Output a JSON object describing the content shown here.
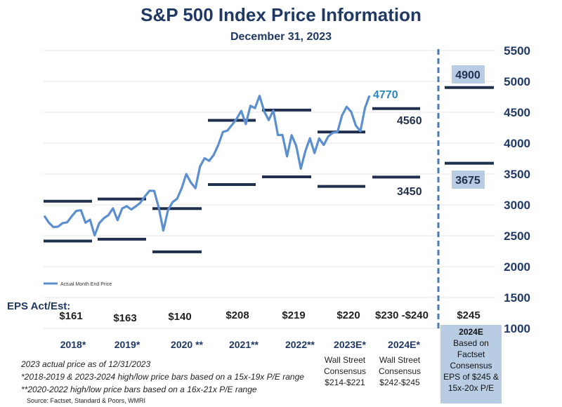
{
  "header": {
    "title": "S&P 500 Index Price Information",
    "subtitle": "December 31, 2023"
  },
  "legend": {
    "label": "Actual Month End Price"
  },
  "eps_header": "EPS Act/Est:",
  "eps": [
    "$161",
    "$163",
    "$140",
    "$208",
    "$219",
    "$220",
    "$230 -$240",
    "$245"
  ],
  "years": [
    "2018*",
    "2019*",
    "2020 **",
    "2021**",
    "2022**",
    "2023E*",
    "2024E*"
  ],
  "consensus_2023": [
    "Wall Street",
    "Consensus",
    "$214-$221"
  ],
  "consensus_2024": [
    "Wall Street",
    "Consensus",
    "$242-$245"
  ],
  "box_2024": {
    "title": "2024E",
    "lines": [
      "Based on",
      "Factset",
      "Consensus",
      "EPS of $245 &",
      "15x-20x P/E"
    ]
  },
  "notes": [
    "2023 actual price as of 12/31/2023",
    "*2018-2019 & 2023-2024  high/low price bars based on a 15x-19x P/E range",
    "**2020-2022 high/low price bars based on a 16x-21x P/E range"
  ],
  "source": "Source: Factset, Standard & Poors, WMRI",
  "colors": {
    "line": "#5b8fcf",
    "bars": "#1f2f4d",
    "navy": "#1f3864",
    "label_box": "#b8cce4",
    "highlight_label": "#2e86c1"
  },
  "chart_data": {
    "type": "line",
    "ylim": [
      1000,
      5500
    ],
    "yticks": [
      1000,
      1500,
      2000,
      2500,
      3000,
      3500,
      4000,
      4500,
      5000,
      5500
    ],
    "series": [
      {
        "name": "Actual Month End Price",
        "x": [
          "2018-01",
          "2018-02",
          "2018-03",
          "2018-04",
          "2018-05",
          "2018-06",
          "2018-07",
          "2018-08",
          "2018-09",
          "2018-10",
          "2018-11",
          "2018-12",
          "2019-01",
          "2019-02",
          "2019-03",
          "2019-04",
          "2019-05",
          "2019-06",
          "2019-07",
          "2019-08",
          "2019-09",
          "2019-10",
          "2019-11",
          "2019-12",
          "2020-01",
          "2020-02",
          "2020-03",
          "2020-04",
          "2020-05",
          "2020-06",
          "2020-07",
          "2020-08",
          "2020-09",
          "2020-10",
          "2020-11",
          "2020-12",
          "2021-01",
          "2021-02",
          "2021-03",
          "2021-04",
          "2021-05",
          "2021-06",
          "2021-07",
          "2021-08",
          "2021-09",
          "2021-10",
          "2021-11",
          "2021-12",
          "2022-01",
          "2022-02",
          "2022-03",
          "2022-04",
          "2022-05",
          "2022-06",
          "2022-07",
          "2022-08",
          "2022-09",
          "2022-10",
          "2022-11",
          "2022-12",
          "2023-01",
          "2023-02",
          "2023-03",
          "2023-04",
          "2023-05",
          "2023-06",
          "2023-07",
          "2023-08",
          "2023-09",
          "2023-10",
          "2023-11",
          "2023-12"
        ],
        "values": [
          2824,
          2714,
          2641,
          2648,
          2705,
          2718,
          2816,
          2902,
          2914,
          2712,
          2760,
          2507,
          2704,
          2784,
          2834,
          2946,
          2752,
          2942,
          2980,
          2926,
          2977,
          3038,
          3141,
          3231,
          3226,
          2954,
          2585,
          2912,
          3044,
          3100,
          3271,
          3500,
          3363,
          3270,
          3622,
          3756,
          3714,
          3811,
          3973,
          4181,
          4204,
          4298,
          4395,
          4523,
          4308,
          4605,
          4567,
          4766,
          4516,
          4374,
          4530,
          4132,
          4132,
          3785,
          4130,
          3955,
          3586,
          3872,
          4080,
          3840,
          4077,
          3970,
          4109,
          4169,
          4180,
          4450,
          4589,
          4508,
          4288,
          4194,
          4568,
          4770
        ]
      }
    ],
    "price_bars": [
      {
        "period": "2018*",
        "low": 2415,
        "high": 3060
      },
      {
        "period": "2019*",
        "low": 2445,
        "high": 3095
      },
      {
        "period": "2020 **",
        "low": 2240,
        "high": 2940
      },
      {
        "period": "2021**",
        "low": 3330,
        "high": 4370
      },
      {
        "period": "2022**",
        "low": 3455,
        "high": 4535
      },
      {
        "period": "2023E*",
        "low": 3300,
        "high": 4180
      },
      {
        "period": "2024E*",
        "low": 3450,
        "high": 4560
      },
      {
        "period": "2024E",
        "low": 3675,
        "high": 4900
      }
    ],
    "annotations": {
      "last_price": "4770",
      "high_2024": "4560",
      "low_2024": "3450",
      "box_high": "4900",
      "box_low": "3675"
    }
  }
}
